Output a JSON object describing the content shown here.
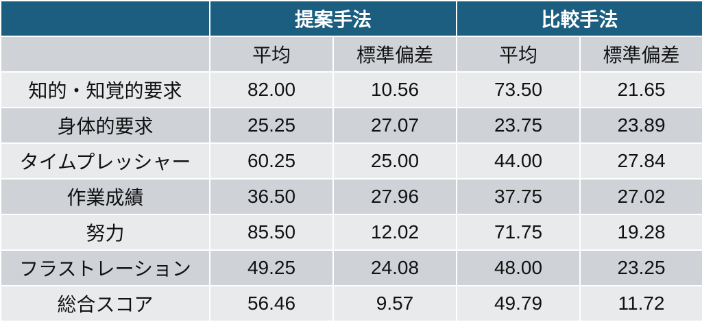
{
  "header": {
    "groups": [
      "提案手法",
      "比較手法"
    ],
    "subheaders": [
      "平均",
      "標準偏差",
      "平均",
      "標準偏差"
    ]
  },
  "rows": [
    {
      "label": "知的・知覚的要求",
      "values": [
        "82.00",
        "10.56",
        "73.50",
        "21.65"
      ]
    },
    {
      "label": "身体的要求",
      "values": [
        "25.25",
        "27.07",
        "23.75",
        "23.89"
      ]
    },
    {
      "label": "タイムプレッシャー",
      "values": [
        "60.25",
        "25.00",
        "44.00",
        "27.84"
      ]
    },
    {
      "label": "作業成績",
      "values": [
        "36.50",
        "27.96",
        "37.75",
        "27.02"
      ]
    },
    {
      "label": "努力",
      "values": [
        "85.50",
        "12.02",
        "71.75",
        "19.28"
      ]
    },
    {
      "label": "フラストレーション",
      "values": [
        "49.25",
        "24.08",
        "48.00",
        "23.25"
      ]
    },
    {
      "label": "総合スコア",
      "values": [
        "56.46",
        "9.57",
        "49.79",
        "11.72"
      ]
    }
  ],
  "colors": {
    "header": "#1b5e80",
    "row_light": "#e8eaec",
    "row_dark": "#cfd3d8"
  }
}
